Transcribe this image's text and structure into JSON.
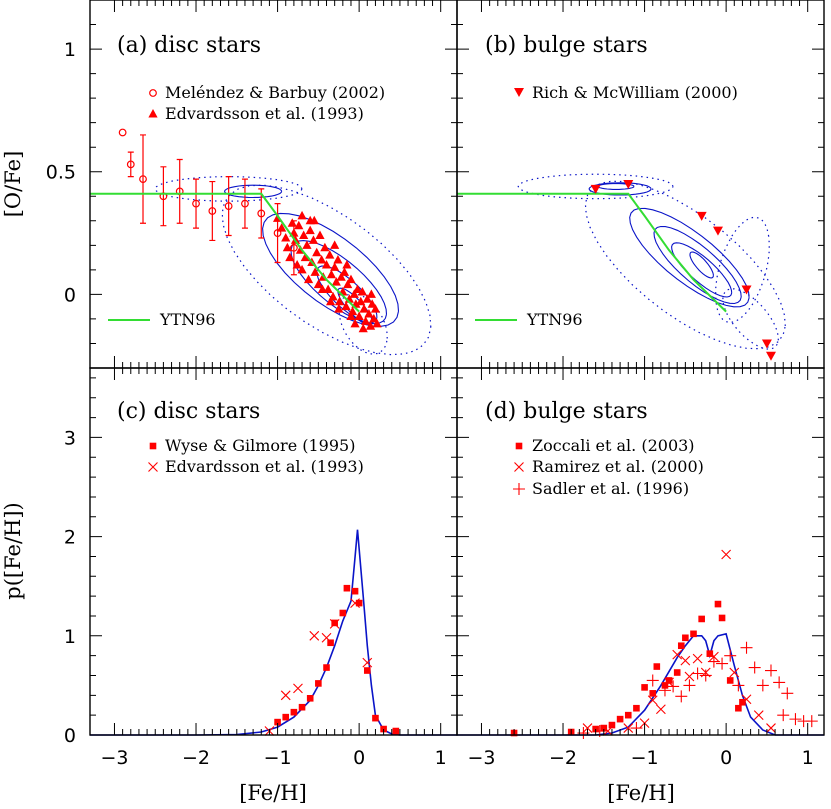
{
  "chart_data": [
    {
      "panel": "a",
      "type": "scatter",
      "title": "(a) disc stars",
      "ylabel": "[O/Fe]",
      "xlim": [
        -3.3,
        1.2
      ],
      "ylim": [
        -0.3,
        1.2
      ],
      "yticks": [
        0,
        0.5,
        1
      ],
      "ytick_labels": [
        "0",
        "0.5",
        "1"
      ],
      "legend": [
        {
          "label": "Meléndez & Barbuy (2002)",
          "marker": "circle"
        },
        {
          "label": "Edvardsson et al. (1993)",
          "marker": "triangle-up"
        }
      ],
      "line_label": "YTN96",
      "model_line": [
        [
          -3.3,
          0.41
        ],
        [
          -1.2,
          0.41
        ],
        [
          -1.0,
          0.32
        ],
        [
          -0.7,
          0.18
        ],
        [
          -0.4,
          0.06
        ],
        [
          0.0,
          -0.07
        ]
      ],
      "melendez": [
        {
          "x": -2.9,
          "y": 0.66,
          "err": 0.0
        },
        {
          "x": -2.8,
          "y": 0.53,
          "err": 0.05
        },
        {
          "x": -2.65,
          "y": 0.47,
          "err": 0.18
        },
        {
          "x": -2.4,
          "y": 0.4,
          "err": 0.12
        },
        {
          "x": -2.2,
          "y": 0.42,
          "err": 0.13
        },
        {
          "x": -2.0,
          "y": 0.37,
          "err": 0.1
        },
        {
          "x": -1.8,
          "y": 0.34,
          "err": 0.12
        },
        {
          "x": -1.6,
          "y": 0.36,
          "err": 0.12
        },
        {
          "x": -1.4,
          "y": 0.37,
          "err": 0.1
        },
        {
          "x": -1.2,
          "y": 0.33,
          "err": 0.1
        },
        {
          "x": -1.0,
          "y": 0.25,
          "err": 0.12
        },
        {
          "x": -0.8,
          "y": 0.19,
          "err": 0.11
        }
      ],
      "edvardsson": [
        [
          -1.0,
          0.31
        ],
        [
          -0.95,
          0.27
        ],
        [
          -0.9,
          0.23
        ],
        [
          -0.88,
          0.19
        ],
        [
          -0.85,
          0.15
        ],
        [
          -0.82,
          0.29
        ],
        [
          -0.8,
          0.25
        ],
        [
          -0.78,
          0.22
        ],
        [
          -0.76,
          0.12
        ],
        [
          -0.74,
          0.28
        ],
        [
          -0.72,
          0.18
        ],
        [
          -0.7,
          0.1
        ],
        [
          -0.68,
          0.24
        ],
        [
          -0.66,
          0.15
        ],
        [
          -0.64,
          0.2
        ],
        [
          -0.62,
          0.06
        ],
        [
          -0.6,
          0.26
        ],
        [
          -0.58,
          0.13
        ],
        [
          -0.56,
          0.22
        ],
        [
          -0.54,
          0.09
        ],
        [
          -0.52,
          0.17
        ],
        [
          -0.5,
          0.04
        ],
        [
          -0.48,
          0.24
        ],
        [
          -0.46,
          0.14
        ],
        [
          -0.44,
          0.07
        ],
        [
          -0.42,
          0.19
        ],
        [
          -0.4,
          0.12
        ],
        [
          -0.38,
          0.02
        ],
        [
          -0.36,
          0.16
        ],
        [
          -0.34,
          0.08
        ],
        [
          -0.32,
          -0.01
        ],
        [
          -0.3,
          0.11
        ],
        [
          -0.28,
          0.05
        ],
        [
          -0.26,
          0.14
        ],
        [
          -0.24,
          -0.03
        ],
        [
          -0.22,
          0.07
        ],
        [
          -0.2,
          0.01
        ],
        [
          -0.18,
          0.09
        ],
        [
          -0.16,
          -0.05
        ],
        [
          -0.14,
          0.04
        ],
        [
          -0.12,
          -0.02
        ],
        [
          -0.1,
          0.06
        ],
        [
          -0.08,
          -0.07
        ],
        [
          -0.06,
          0.0
        ],
        [
          -0.04,
          -0.04
        ],
        [
          -0.02,
          0.02
        ],
        [
          0.0,
          -0.09
        ],
        [
          0.02,
          -0.03
        ],
        [
          0.04,
          0.01
        ],
        [
          0.06,
          -0.06
        ],
        [
          0.08,
          -0.11
        ],
        [
          0.1,
          -0.02
        ],
        [
          0.12,
          -0.08
        ],
        [
          0.14,
          -0.13
        ],
        [
          0.16,
          -0.04
        ],
        [
          0.18,
          -0.1
        ],
        [
          0.2,
          -0.06
        ],
        [
          -0.3,
          0.2
        ],
        [
          -0.15,
          0.12
        ],
        [
          -0.05,
          -0.12
        ],
        [
          0.05,
          -0.14
        ],
        [
          -0.6,
          0.3
        ],
        [
          -0.55,
          0.3
        ],
        [
          -0.45,
          0.02
        ],
        [
          -0.25,
          -0.06
        ],
        [
          -0.1,
          -0.09
        ],
        [
          0.15,
          0.0
        ],
        [
          0.22,
          -0.12
        ],
        [
          -0.35,
          -0.03
        ],
        [
          -0.7,
          0.32
        ]
      ]
    },
    {
      "panel": "b",
      "type": "scatter",
      "title": "(b) bulge stars",
      "xlim": [
        -3.3,
        1.2
      ],
      "ylim": [
        -0.3,
        1.2
      ],
      "legend": [
        {
          "label": "Rich & McWilliam (2000)",
          "marker": "triangle-down"
        }
      ],
      "line_label": "YTN96",
      "model_line": [
        [
          -3.3,
          0.41
        ],
        [
          -1.2,
          0.41
        ],
        [
          -1.0,
          0.32
        ],
        [
          -0.7,
          0.18
        ],
        [
          -0.4,
          0.06
        ],
        [
          0.0,
          -0.07
        ]
      ],
      "rich": [
        [
          -1.6,
          0.43
        ],
        [
          -1.2,
          0.45
        ],
        [
          -0.3,
          0.32
        ],
        [
          -0.1,
          0.26
        ],
        [
          0.25,
          0.02
        ],
        [
          0.5,
          -0.2
        ],
        [
          0.55,
          -0.25
        ]
      ]
    },
    {
      "panel": "c",
      "type": "scatter",
      "title": "(c) disc stars",
      "xlabel": "[Fe/H]",
      "ylabel": "p([Fe/H])",
      "xlim": [
        -3.3,
        1.2
      ],
      "ylim": [
        0,
        3.7
      ],
      "xticks": [
        -3,
        -2,
        -1,
        0,
        1
      ],
      "xtick_labels": [
        "−3",
        "−2",
        "−1",
        "0",
        "1"
      ],
      "yticks": [
        0,
        1,
        2,
        3
      ],
      "ytick_labels": [
        "0",
        "1",
        "2",
        "3"
      ],
      "legend": [
        {
          "label": "Wyse & Gilmore (1995)",
          "marker": "square"
        },
        {
          "label": "Edvardsson et al. (1993)",
          "marker": "cross"
        }
      ],
      "model_line": [
        [
          -3.3,
          0
        ],
        [
          -2.0,
          0
        ],
        [
          -1.5,
          0.005
        ],
        [
          -1.2,
          0.03
        ],
        [
          -1.0,
          0.08
        ],
        [
          -0.8,
          0.18
        ],
        [
          -0.6,
          0.35
        ],
        [
          -0.5,
          0.5
        ],
        [
          -0.4,
          0.68
        ],
        [
          -0.3,
          0.9
        ],
        [
          -0.2,
          1.15
        ],
        [
          -0.15,
          1.25
        ],
        [
          -0.1,
          1.35
        ],
        [
          -0.05,
          1.8
        ],
        [
          -0.02,
          2.07
        ],
        [
          0.05,
          1.4
        ],
        [
          0.1,
          0.9
        ],
        [
          0.15,
          0.5
        ],
        [
          0.2,
          0.2
        ],
        [
          0.3,
          0.05
        ],
        [
          0.4,
          0.01
        ],
        [
          0.5,
          0
        ],
        [
          1.2,
          0
        ]
      ],
      "wyse": [
        [
          -1.0,
          0.13
        ],
        [
          -0.9,
          0.18
        ],
        [
          -0.8,
          0.23
        ],
        [
          -0.7,
          0.28
        ],
        [
          -0.6,
          0.37
        ],
        [
          -0.5,
          0.52
        ],
        [
          -0.4,
          0.68
        ],
        [
          -0.35,
          0.93
        ],
        [
          -0.3,
          1.13
        ],
        [
          -0.2,
          1.23
        ],
        [
          -0.15,
          1.48
        ],
        [
          -0.05,
          1.45
        ],
        [
          0.0,
          1.33
        ],
        [
          0.1,
          0.65
        ],
        [
          0.2,
          0.17
        ],
        [
          0.3,
          0.06
        ],
        [
          0.45,
          0.04
        ]
      ],
      "edvardsson": [
        [
          -1.1,
          0.04
        ],
        [
          -0.9,
          0.4
        ],
        [
          -0.75,
          0.47
        ],
        [
          -0.55,
          1.0
        ],
        [
          -0.4,
          0.98
        ],
        [
          -0.3,
          1.12
        ],
        [
          -0.05,
          1.33
        ],
        [
          0.1,
          0.73
        ]
      ]
    },
    {
      "panel": "d",
      "type": "scatter",
      "title": "(d) bulge stars",
      "xlabel": "[Fe/H]",
      "xlim": [
        -3.3,
        1.2
      ],
      "ylim": [
        0,
        3.7
      ],
      "xticks": [
        -3,
        -2,
        -1,
        0,
        1
      ],
      "xtick_labels": [
        "−3",
        "−2",
        "−1",
        "0",
        "1"
      ],
      "legend": [
        {
          "label": "Zoccali et al. (2003)",
          "marker": "square"
        },
        {
          "label": "Ramirez et al. (2000)",
          "marker": "cross"
        },
        {
          "label": "Sadler et al. (1996)",
          "marker": "plus"
        }
      ],
      "model_line": [
        [
          -3.3,
          0
        ],
        [
          -1.6,
          0
        ],
        [
          -1.4,
          0.02
        ],
        [
          -1.2,
          0.08
        ],
        [
          -1.0,
          0.25
        ],
        [
          -0.8,
          0.5
        ],
        [
          -0.6,
          0.78
        ],
        [
          -0.5,
          0.9
        ],
        [
          -0.4,
          1.0
        ],
        [
          -0.3,
          1.0
        ],
        [
          -0.25,
          0.95
        ],
        [
          -0.2,
          0.8
        ],
        [
          -0.15,
          0.95
        ],
        [
          -0.1,
          1.0
        ],
        [
          0.0,
          1.02
        ],
        [
          0.1,
          0.7
        ],
        [
          0.2,
          0.4
        ],
        [
          0.3,
          0.18
        ],
        [
          0.45,
          0.05
        ],
        [
          0.6,
          0.0
        ],
        [
          1.2,
          0
        ]
      ],
      "zoccali": [
        [
          -2.6,
          0.02
        ],
        [
          -1.9,
          0.03
        ],
        [
          -1.6,
          0.06
        ],
        [
          -1.5,
          0.07
        ],
        [
          -1.4,
          0.1
        ],
        [
          -1.3,
          0.16
        ],
        [
          -1.2,
          0.2
        ],
        [
          -1.1,
          0.27
        ],
        [
          -1.0,
          0.48
        ],
        [
          -0.9,
          0.42
        ],
        [
          -0.85,
          0.69
        ],
        [
          -0.75,
          0.5
        ],
        [
          -0.7,
          0.55
        ],
        [
          -0.6,
          0.63
        ],
        [
          -0.55,
          0.9
        ],
        [
          -0.5,
          0.98
        ],
        [
          -0.4,
          1.02
        ],
        [
          -0.3,
          1.17
        ],
        [
          -0.2,
          0.82
        ],
        [
          -0.1,
          1.32
        ],
        [
          -0.05,
          1.18
        ],
        [
          0.05,
          0.55
        ],
        [
          0.15,
          0.27
        ],
        [
          0.2,
          0.33
        ]
      ],
      "ramirez": [
        [
          -1.7,
          0.07
        ],
        [
          -1.45,
          0.04
        ],
        [
          -1.2,
          0.07
        ],
        [
          -1.0,
          0.12
        ],
        [
          -0.9,
          0.35
        ],
        [
          -0.8,
          0.26
        ],
        [
          -0.7,
          0.53
        ],
        [
          -0.6,
          0.81
        ],
        [
          -0.5,
          0.75
        ],
        [
          -0.45,
          0.59
        ],
        [
          -0.35,
          0.77
        ],
        [
          -0.25,
          0.63
        ],
        [
          -0.15,
          0.79
        ],
        [
          0.0,
          1.82
        ],
        [
          0.1,
          0.63
        ],
        [
          0.25,
          0.36
        ],
        [
          0.4,
          0.2
        ],
        [
          0.55,
          0.07
        ]
      ],
      "sadler": [
        [
          -1.75,
          0.02
        ],
        [
          -1.55,
          0.04
        ],
        [
          -1.1,
          0.07
        ],
        [
          -0.9,
          0.55
        ],
        [
          -0.75,
          0.45
        ],
        [
          -0.65,
          0.49
        ],
        [
          -0.55,
          0.39
        ],
        [
          -0.45,
          0.5
        ],
        [
          -0.35,
          0.62
        ],
        [
          -0.25,
          0.6
        ],
        [
          -0.15,
          0.74
        ],
        [
          -0.05,
          0.72
        ],
        [
          0.05,
          0.8
        ],
        [
          0.15,
          0.5
        ],
        [
          0.25,
          0.88
        ],
        [
          0.35,
          0.68
        ],
        [
          0.45,
          0.5
        ],
        [
          0.55,
          0.65
        ],
        [
          0.65,
          0.53
        ],
        [
          0.75,
          0.42
        ],
        [
          0.85,
          0.16
        ],
        [
          0.95,
          0.14
        ],
        [
          1.05,
          0.14
        ],
        [
          0.7,
          0.2
        ]
      ]
    }
  ]
}
